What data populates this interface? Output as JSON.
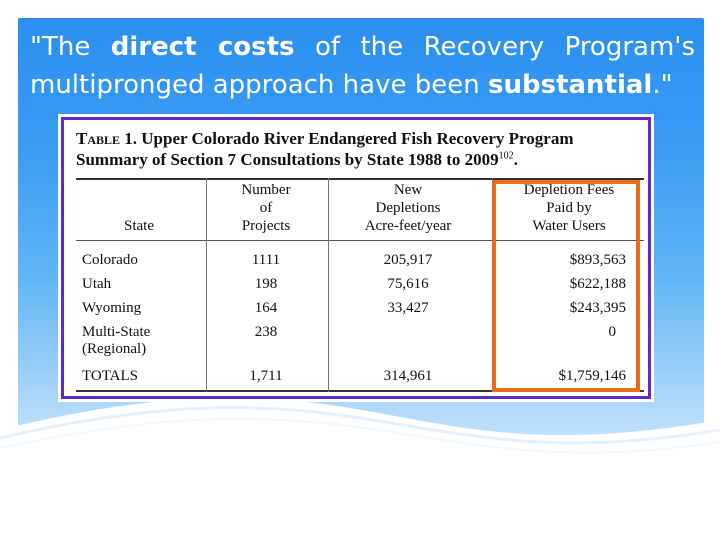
{
  "title": {
    "part1": "\"The ",
    "bold1": "direct costs",
    "part2": " of the Recovery Program's multipronged approach have been ",
    "bold2": "substantial",
    "part3": ".\""
  },
  "table": {
    "caption_table_word": "Table",
    "caption_rest_line1": " 1. Upper Colorado River Endangered Fish Recovery Program",
    "caption_line2": "Summary of Section 7 Consultations by State 1988 to 2009",
    "caption_footnote": "102",
    "caption_end": ".",
    "headers": {
      "state": "State",
      "projects_l1": "Number",
      "projects_l2": "of",
      "projects_l3": "Projects",
      "depletions_l1": "New",
      "depletions_l2": "Depletions",
      "depletions_l3": "Acre-feet/year",
      "fees_l1": "Depletion Fees",
      "fees_l2": "Paid by",
      "fees_l3": "Water Users"
    },
    "rows": [
      {
        "state": "Colorado",
        "projects": "1111",
        "depletions": "205,917",
        "fees": "$893,563"
      },
      {
        "state": "Utah",
        "projects": "198",
        "depletions": "75,616",
        "fees": "$622,188"
      },
      {
        "state": "Wyoming",
        "projects": "164",
        "depletions": "33,427",
        "fees": "$243,395"
      },
      {
        "state": "Multi-State",
        "state_l2": "(Regional)",
        "projects": "238",
        "depletions": "",
        "fees": "0"
      }
    ],
    "totals": {
      "state": "TOTALS",
      "projects": "1,711",
      "depletions": "314,961",
      "fees": "$1,759,146"
    }
  },
  "colors": {
    "background_blue": "#2b8ff0",
    "table_border": "#5b2bd0",
    "highlight": "#e96b1c"
  }
}
